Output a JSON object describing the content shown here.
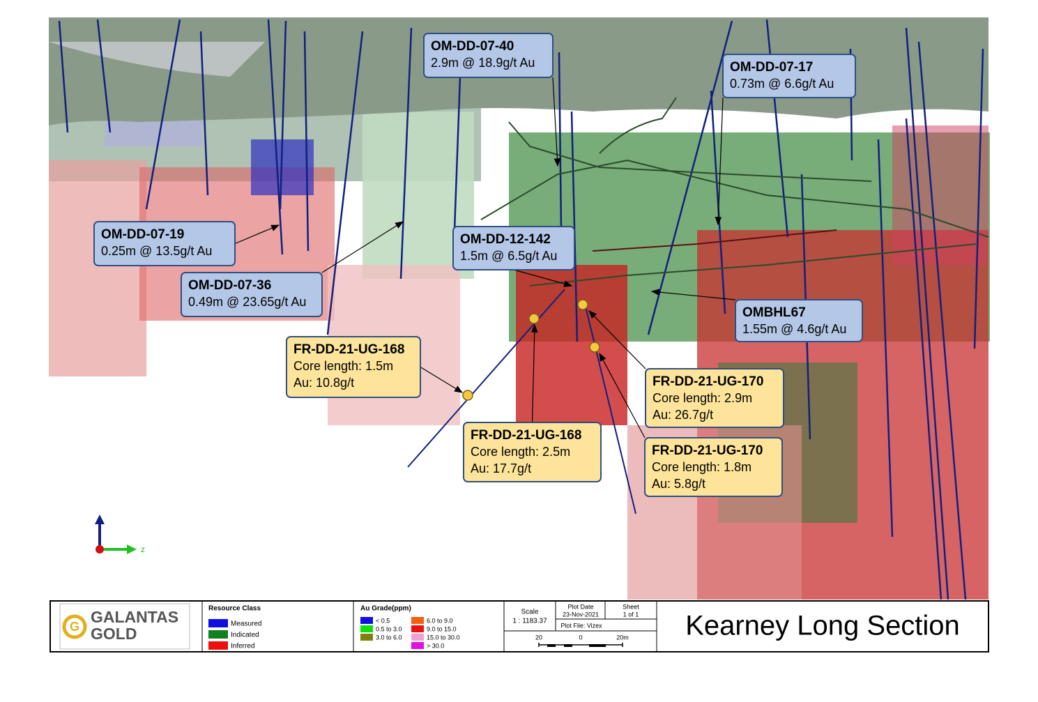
{
  "axis_label": "z",
  "callouts": [
    {
      "title": "OM-DD-07-40",
      "lines": [
        "2.9m @ 18.9g/t Au"
      ]
    },
    {
      "title": "OM-DD-07-17",
      "lines": [
        "0.73m @ 6.6g/t Au"
      ]
    },
    {
      "title": "OM-DD-07-19",
      "lines": [
        "0.25m @ 13.5g/t Au"
      ]
    },
    {
      "title": "OM-DD-12-142",
      "lines": [
        "1.5m @ 6.5g/t Au"
      ]
    },
    {
      "title": "OM-DD-07-36",
      "lines": [
        "0.49m @ 23.65g/t Au"
      ]
    },
    {
      "title": "OMBHL67",
      "lines": [
        "1.55m @ 4.6g/t Au"
      ]
    },
    {
      "title": "FR-DD-21-UG-168",
      "lines": [
        "Core length: 1.5m",
        "Au: 10.8g/t"
      ]
    },
    {
      "title": "FR-DD-21-UG-168",
      "lines": [
        "Core length: 2.5m",
        "Au: 17.7g/t"
      ]
    },
    {
      "title": "FR-DD-21-UG-170",
      "lines": [
        "Core length: 2.9m",
        "Au: 26.7g/t"
      ]
    },
    {
      "title": "FR-DD-21-UG-170",
      "lines": [
        "Core length: 1.8m",
        "Au: 5.8g/t"
      ]
    }
  ],
  "footer": {
    "logo": [
      "GALANTAS",
      "GOLD"
    ],
    "resource_class": {
      "title": "Resource Class",
      "items": [
        {
          "label": "Measured",
          "color": "#1010e0"
        },
        {
          "label": "Indicated",
          "color": "#108020"
        },
        {
          "label": "Inferred",
          "color": "#ee1010"
        }
      ]
    },
    "au_grade": {
      "title": "Au Grade(ppm)",
      "items": [
        {
          "label": "< 0.5",
          "color": "#1010e0"
        },
        {
          "label": "0.5 to 3.0",
          "color": "#10e010"
        },
        {
          "label": "3.0 to 6.0",
          "color": "#808010"
        },
        {
          "label": "6.0 to 9.0",
          "color": "#f06010"
        },
        {
          "label": "9.0 to 15.0",
          "color": "#ee1010"
        },
        {
          "label": "15.0 to 30.0",
          "color": "#f0a0d0"
        },
        {
          "label": "> 30.0",
          "color": "#e010e0"
        }
      ]
    },
    "scale": {
      "title": "Scale",
      "value": "1 : 1183.37",
      "bar": [
        "20",
        "0",
        "20m"
      ]
    },
    "plot_date": {
      "title": "Plot Date",
      "value": "23-Nov-2021"
    },
    "sheet": {
      "title": "Sheet",
      "value": "1 of 1"
    },
    "plot_file": "Plot File: Vizex",
    "title": "Kearney Long Section"
  }
}
